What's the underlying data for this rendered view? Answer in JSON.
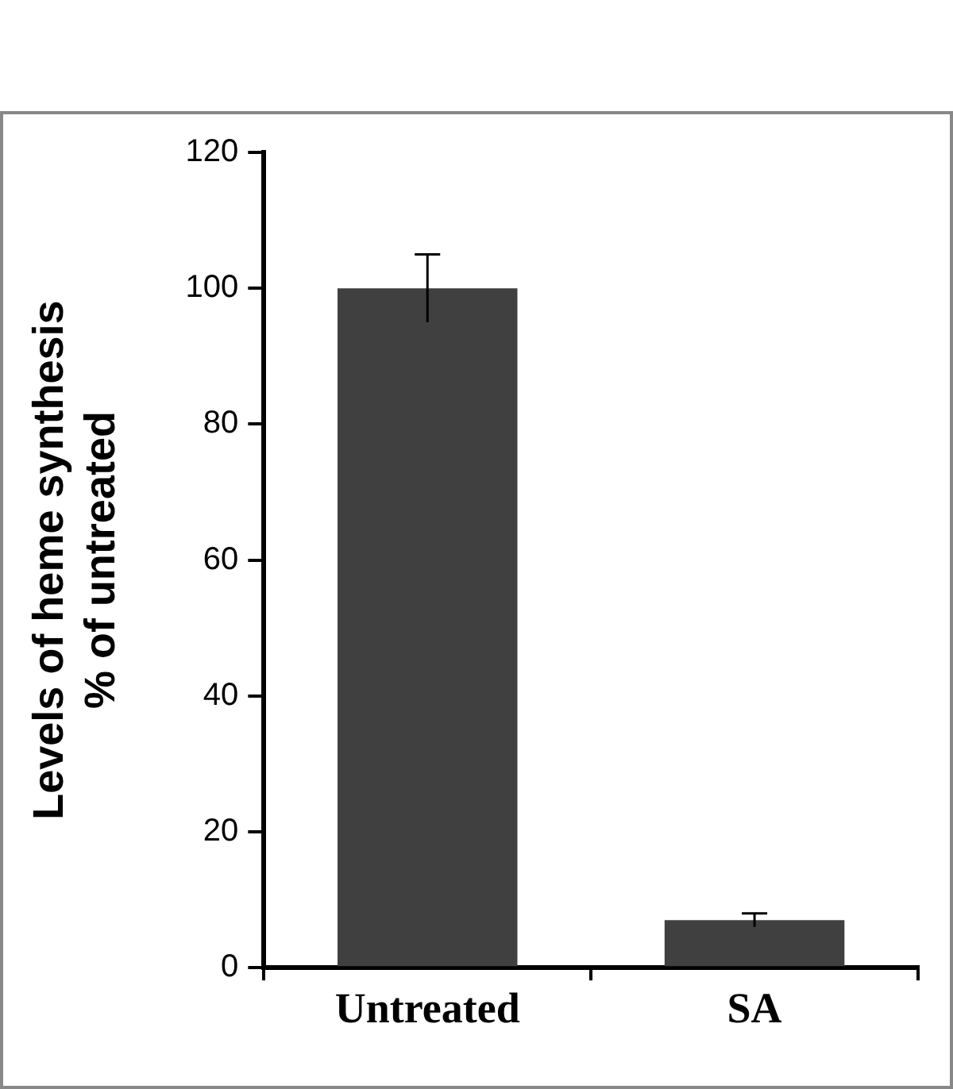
{
  "chart_data": {
    "type": "bar",
    "ylabel": "Levels of heme synthesis\n% of untreated",
    "categories": [
      "Untreated",
      "SA"
    ],
    "values": [
      100,
      7
    ],
    "errors": [
      5,
      1
    ],
    "color": "#404040",
    "ylim": [
      0,
      120
    ],
    "yticks": [
      0,
      20,
      40,
      60,
      80,
      100,
      120
    ],
    "grid": false,
    "legend": false
  }
}
